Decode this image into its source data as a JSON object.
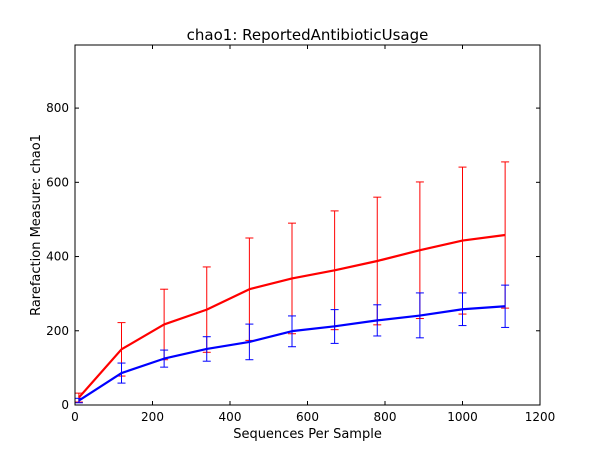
{
  "chart_data": {
    "type": "line",
    "title": "chao1: ReportedAntibioticUsage",
    "xlabel": "Sequences Per Sample",
    "ylabel": "Rarefaction Measure: chao1",
    "xlim": [
      0,
      1200
    ],
    "ylim": [
      0,
      970
    ],
    "xticks": [
      0,
      200,
      400,
      600,
      800,
      1000,
      1200
    ],
    "yticks": [
      0,
      200,
      400,
      600,
      800
    ],
    "grid": false,
    "legend": "none",
    "x": [
      10,
      120,
      230,
      340,
      450,
      560,
      670,
      780,
      890,
      1000,
      1110
    ],
    "series": [
      {
        "color": "#ff0000",
        "values": [
          20,
          150,
          217,
          257,
          312,
          341,
          363,
          388,
          417,
          443,
          458
        ],
        "err_upper": [
          32,
          222,
          312,
          372,
          450,
          490,
          523,
          560,
          601,
          641,
          655
        ],
        "err_lower": [
          8,
          78,
          122,
          142,
          174,
          192,
          203,
          216,
          233,
          245,
          261
        ]
      },
      {
        "color": "#0000ff",
        "values": [
          12,
          86,
          125,
          151,
          170,
          199,
          212,
          228,
          241,
          258,
          266
        ],
        "err_upper": [
          18,
          113,
          148,
          184,
          218,
          240,
          257,
          270,
          302,
          302,
          323
        ],
        "err_lower": [
          6,
          59,
          102,
          118,
          122,
          157,
          166,
          186,
          181,
          214,
          209
        ]
      }
    ]
  }
}
